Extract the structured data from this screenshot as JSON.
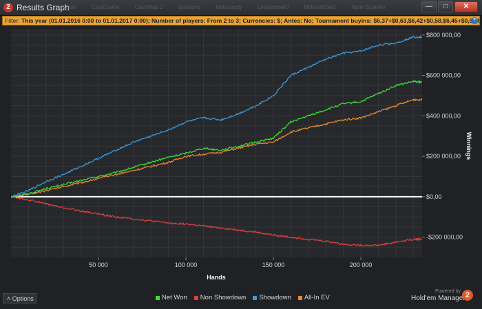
{
  "window": {
    "title": "Results Graph",
    "app_icon_glyph": "2",
    "background_tabs": [
      "Cash",
      "CashGame",
      "CashMap 2",
      "Sessions",
      "Notecaddy",
      "Leaderboard",
      "NotesWizard",
      "Table Scanner"
    ],
    "buttons": {
      "minimize": "—",
      "maximize": "□",
      "close": "✕"
    }
  },
  "filter": {
    "label": "Filter:",
    "text": "This year (01.01.2016 0:00 to 01.01.2017 0:00); Number of players: From 2 to 3; Currencies: $; Antes: No; Tournament buyins: $6,37+$0,63,$6,42+$0,58,$6,45+$0,55,$6,51+$0,49,$6,54+$0,46,$6,55+$0,45,$6,60+$0,40"
  },
  "options_label": "Options",
  "branding": {
    "powered_by": "Powered by",
    "product": "Hold'em Manager",
    "logo_glyph": "2"
  },
  "chart_data": {
    "type": "line",
    "xlabel": "Hands",
    "ylabel": "Winnings",
    "xlim": [
      0,
      235000
    ],
    "ylim": [
      -300000,
      830000
    ],
    "x_ticks": [
      50000,
      100000,
      150000,
      200000
    ],
    "x_tick_labels": [
      "50 000",
      "100 000",
      "150 000",
      "200 000"
    ],
    "y_ticks": [
      800000,
      600000,
      400000,
      200000,
      0,
      -200000
    ],
    "y_tick_labels": [
      "$800 000,00",
      "$600 000,00",
      "$400 000,00",
      "$200 000,00",
      "$0,00",
      "-$200 000,00"
    ],
    "grid": true,
    "legend_position": "bottom-center",
    "x": [
      0,
      10000,
      20000,
      30000,
      40000,
      50000,
      60000,
      70000,
      80000,
      90000,
      100000,
      110000,
      120000,
      130000,
      140000,
      150000,
      160000,
      170000,
      180000,
      190000,
      200000,
      210000,
      220000,
      230000,
      235000
    ],
    "series": [
      {
        "name": "Net Won",
        "color": "#3ddc3a",
        "values": [
          0,
          15000,
          40000,
          60000,
          80000,
          100000,
          120000,
          145000,
          170000,
          195000,
          215000,
          240000,
          230000,
          250000,
          270000,
          290000,
          370000,
          400000,
          430000,
          460000,
          470000,
          510000,
          550000,
          570000,
          565000
        ]
      },
      {
        "name": "Non Showdown",
        "color": "#d9433f",
        "values": [
          0,
          -15000,
          -35000,
          -55000,
          -70000,
          -85000,
          -100000,
          -110000,
          -120000,
          -130000,
          -135000,
          -145000,
          -155000,
          -165000,
          -175000,
          -190000,
          -200000,
          -210000,
          -220000,
          -235000,
          -240000,
          -240000,
          -225000,
          -210000,
          -210000
        ]
      },
      {
        "name": "Showdown",
        "color": "#3a9ad9",
        "values": [
          0,
          30000,
          75000,
          110000,
          150000,
          190000,
          230000,
          270000,
          300000,
          330000,
          370000,
          390000,
          380000,
          410000,
          450000,
          500000,
          600000,
          640000,
          680000,
          710000,
          720000,
          750000,
          760000,
          790000,
          790000
        ]
      },
      {
        "name": "All-In EV",
        "color": "#e8892e",
        "values": [
          0,
          12000,
          30000,
          50000,
          70000,
          90000,
          110000,
          130000,
          150000,
          170000,
          200000,
          210000,
          220000,
          240000,
          260000,
          270000,
          320000,
          340000,
          360000,
          380000,
          390000,
          420000,
          450000,
          480000,
          480000
        ]
      }
    ]
  }
}
